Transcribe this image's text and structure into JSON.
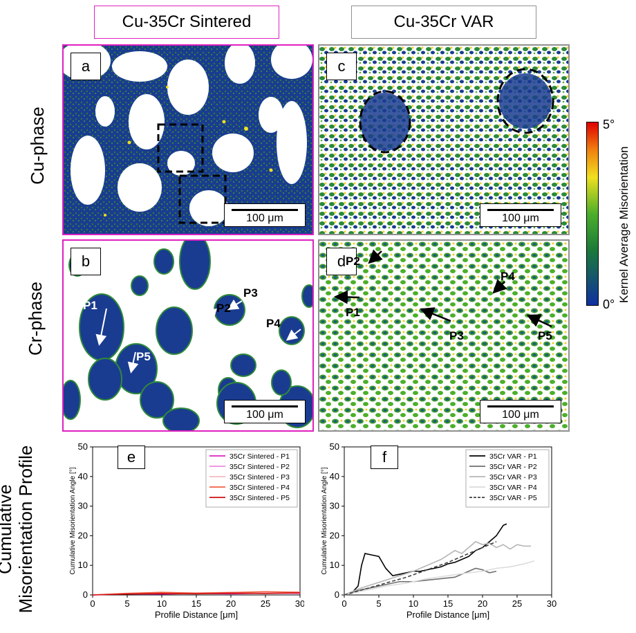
{
  "headers": {
    "left": "Cu-35Cr Sintered",
    "right": "Cu-35Cr VAR",
    "left_border": "#e020c0",
    "right_border": "#909090"
  },
  "row_labels": {
    "cu": "Cu-phase",
    "cr": "Cr-phase",
    "profile_line1": "Cumulative",
    "profile_line2": "Misorientation Profile"
  },
  "panels": {
    "a": "a",
    "b": "b",
    "c": "c",
    "d": "d",
    "e": "e",
    "f": "f"
  },
  "scale_bar": "100 μm",
  "colorbar": {
    "max": "5°",
    "min": "0°",
    "label": "Kernel Average Misorientation",
    "colors": [
      "#1030a0",
      "#1a7a3a",
      "#4caf2a",
      "#f0e020",
      "#f08010",
      "#e00000"
    ]
  },
  "profile_labels_b": [
    "P1",
    "P2",
    "P3",
    "P4",
    "P5"
  ],
  "profile_labels_d": [
    "P1",
    "P2",
    "P3",
    "P4",
    "P5"
  ],
  "chart_data": [
    {
      "type": "line",
      "panel": "e",
      "xlabel": "Profile Distance  [μm]",
      "ylabel": "Cumulative Misorientation Angle [°]",
      "xlim": [
        0,
        30
      ],
      "ylim": [
        0,
        50
      ],
      "xticks": [
        0,
        5,
        10,
        15,
        20,
        25,
        30
      ],
      "yticks": [
        0,
        10,
        20,
        30,
        40,
        50
      ],
      "legend": "top-right",
      "series": [
        {
          "name": "35Cr Sintered - P1",
          "color": "#e020c0",
          "x": [
            0,
            5,
            10,
            15,
            20,
            25,
            30
          ],
          "y": [
            0,
            0.4,
            0.3,
            0.5,
            0.4,
            0.6,
            0.5
          ]
        },
        {
          "name": "35Cr Sintered - P2",
          "color": "#ee88dd",
          "x": [
            0,
            5,
            10,
            15,
            20,
            25,
            30
          ],
          "y": [
            0,
            0.5,
            0.6,
            0.4,
            0.7,
            0.5,
            0.6
          ]
        },
        {
          "name": "35Cr Sintered - P3",
          "color": "#f4b8c0",
          "x": [
            0,
            5,
            10,
            15,
            20,
            25,
            30
          ],
          "y": [
            0,
            0.6,
            0.8,
            0.7,
            0.9,
            0.8,
            1.0
          ]
        },
        {
          "name": "35Cr Sintered - P4",
          "color": "#f06040",
          "x": [
            0,
            5,
            10,
            15,
            20,
            25,
            30
          ],
          "y": [
            0,
            0.5,
            0.9,
            0.6,
            0.8,
            1.1,
            0.9
          ]
        },
        {
          "name": "35Cr Sintered - P5",
          "color": "#d01010",
          "x": [
            0,
            5,
            10,
            15,
            20,
            25,
            30
          ],
          "y": [
            0,
            0.3,
            0.5,
            0.4,
            0.6,
            0.5,
            0.7
          ]
        }
      ]
    },
    {
      "type": "line",
      "panel": "f",
      "xlabel": "Profile Distance  [μm]",
      "ylabel": "Cumulative Misorientation Angle [°]",
      "xlim": [
        0,
        30
      ],
      "ylim": [
        0,
        50
      ],
      "xticks": [
        0,
        5,
        10,
        15,
        20,
        25,
        30
      ],
      "yticks": [
        0,
        10,
        20,
        30,
        40,
        50
      ],
      "legend": "top-right",
      "series": [
        {
          "name": "35Cr VAR - P1",
          "color": "#000000",
          "dash": false,
          "x": [
            0,
            1,
            2,
            2.5,
            3,
            4,
            5,
            6,
            7,
            8,
            9,
            10,
            11,
            12,
            13,
            14,
            15,
            16,
            17,
            18,
            19,
            20,
            21,
            22,
            23,
            23.5
          ],
          "y": [
            0,
            0.5,
            3,
            10,
            14,
            13.5,
            13,
            9,
            6.5,
            7,
            7.5,
            8,
            8,
            8.5,
            9,
            9.5,
            10.5,
            11,
            12,
            13,
            15,
            16,
            18,
            20,
            23.5,
            24
          ]
        },
        {
          "name": "35Cr VAR - P2",
          "color": "#6e6e6e",
          "dash": false,
          "x": [
            0,
            2,
            4,
            6,
            8,
            10,
            12,
            14,
            16,
            17,
            18,
            19,
            20,
            21,
            22
          ],
          "y": [
            0,
            1.5,
            2.5,
            3.5,
            4.5,
            4.5,
            5,
            5.5,
            6,
            7,
            8,
            9,
            8.5,
            7.5,
            8
          ]
        },
        {
          "name": "35Cr VAR - P3",
          "color": "#b4b4b4",
          "dash": false,
          "x": [
            0,
            2,
            4,
            6,
            8,
            10,
            12,
            14,
            16,
            17,
            18,
            19,
            20,
            21,
            22,
            23,
            24,
            25,
            26,
            27
          ],
          "y": [
            0,
            2,
            3.5,
            5,
            6.5,
            8,
            10,
            12,
            15,
            14,
            16,
            18,
            17,
            17.5,
            16,
            17,
            15.5,
            17,
            16.5,
            16.5
          ]
        },
        {
          "name": "35Cr VAR - P4",
          "color": "#dcdcdc",
          "dash": false,
          "x": [
            0,
            3,
            6,
            9,
            12,
            15,
            18,
            20,
            22,
            24,
            26,
            27.5
          ],
          "y": [
            0,
            1.5,
            3,
            4,
            5.5,
            6.5,
            7.5,
            8,
            9,
            9.5,
            10.5,
            11.5
          ]
        },
        {
          "name": "35Cr VAR - P5",
          "color": "#404040",
          "dash": true,
          "x": [
            0,
            3,
            6,
            9,
            12,
            15,
            18,
            20,
            22
          ],
          "y": [
            0,
            2,
            4,
            6,
            8.5,
            11,
            14,
            16,
            18
          ]
        }
      ]
    }
  ]
}
